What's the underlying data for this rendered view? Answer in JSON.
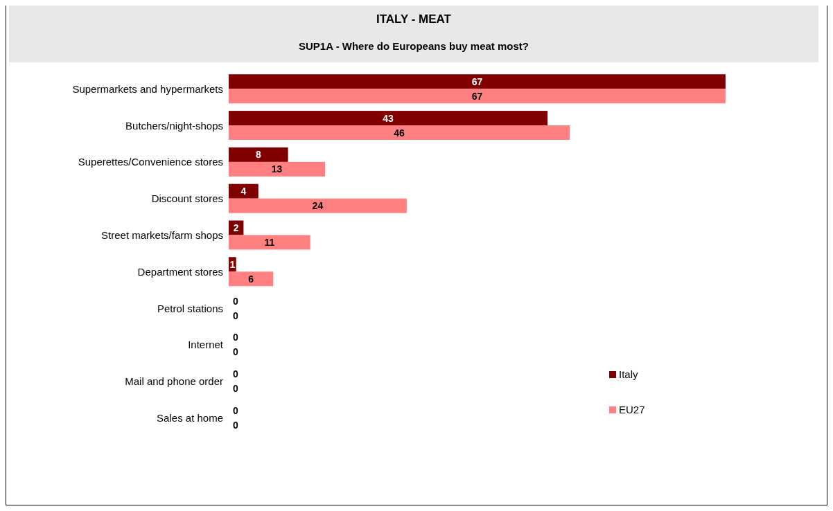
{
  "chart_data": {
    "type": "bar",
    "orientation": "horizontal",
    "title": "ITALY - MEAT",
    "subtitle": "SUP1A - Where do Europeans buy meat most?",
    "categories": [
      "Supermarkets and hypermarkets",
      "Butchers/night-shops",
      "Superettes/Convenience stores",
      "Discount stores",
      "Street markets/farm shops",
      "Department stores",
      "Petrol stations",
      "Internet",
      "Mail and phone order",
      "Sales at home"
    ],
    "series": [
      {
        "name": "Italy",
        "color": "#800000",
        "values": [
          67,
          43,
          8,
          4,
          2,
          1,
          0,
          0,
          0,
          0
        ]
      },
      {
        "name": "EU27",
        "color": "#ff8080",
        "values": [
          67,
          46,
          13,
          24,
          11,
          6,
          0,
          0,
          0,
          0
        ]
      }
    ],
    "tick_labels": "y",
    "data_labels": true,
    "legend": "right",
    "grid": false
  }
}
